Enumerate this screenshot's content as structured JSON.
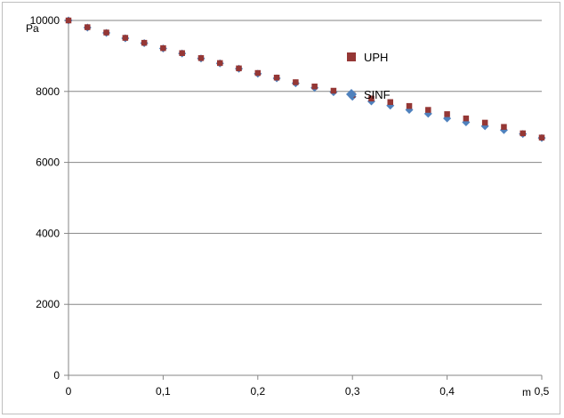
{
  "chart_data": {
    "type": "scatter",
    "xlabel": "m",
    "ylabel": "Pa",
    "xlim": [
      0,
      0.5
    ],
    "ylim": [
      0,
      10000
    ],
    "x_ticks": [
      "0",
      "0,1",
      "0,2",
      "0,3",
      "0,4",
      "0,5"
    ],
    "y_ticks": [
      "0",
      "2000",
      "4000",
      "6000",
      "8000",
      "10000"
    ],
    "x_tick_values": [
      0,
      0.1,
      0.2,
      0.3,
      0.4,
      0.5
    ],
    "y_tick_values": [
      0,
      2000,
      4000,
      6000,
      8000,
      10000
    ],
    "grid": "horizontal",
    "legend_position": "top-right",
    "series": [
      {
        "name": "UPH",
        "marker": "square",
        "color": "#953735",
        "x": [
          0,
          0.02,
          0.04,
          0.06,
          0.08,
          0.1,
          0.12,
          0.14,
          0.16,
          0.18,
          0.2,
          0.22,
          0.24,
          0.26,
          0.28,
          0.3,
          0.32,
          0.34,
          0.36,
          0.38,
          0.4,
          0.42,
          0.44,
          0.46,
          0.48,
          0.5
        ],
        "y": [
          10000,
          9810,
          9660,
          9510,
          9370,
          9220,
          9080,
          8940,
          8800,
          8650,
          8520,
          8390,
          8260,
          8140,
          8020,
          7900,
          7800,
          7700,
          7590,
          7480,
          7360,
          7240,
          7120,
          7000,
          6820,
          6700
        ]
      },
      {
        "name": "SINF",
        "marker": "diamond",
        "color": "#4f81bd",
        "x": [
          0,
          0.02,
          0.04,
          0.06,
          0.08,
          0.1,
          0.12,
          0.14,
          0.16,
          0.18,
          0.2,
          0.22,
          0.24,
          0.26,
          0.28,
          0.3,
          0.32,
          0.34,
          0.36,
          0.38,
          0.4,
          0.42,
          0.44,
          0.46,
          0.48,
          0.5
        ],
        "y": [
          10000,
          9800,
          9650,
          9500,
          9360,
          9210,
          9070,
          8930,
          8790,
          8640,
          8500,
          8370,
          8230,
          8100,
          7980,
          7850,
          7720,
          7600,
          7480,
          7370,
          7240,
          7130,
          7020,
          6910,
          6800,
          6690
        ]
      }
    ]
  }
}
